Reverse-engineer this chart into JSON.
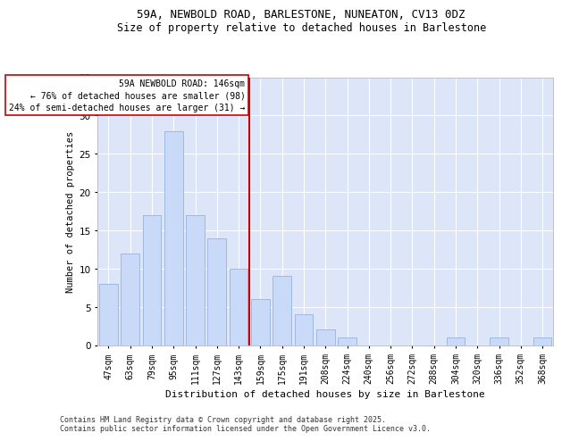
{
  "title1": "59A, NEWBOLD ROAD, BARLESTONE, NUNEATON, CV13 0DZ",
  "title2": "Size of property relative to detached houses in Barlestone",
  "xlabel": "Distribution of detached houses by size in Barlestone",
  "ylabel": "Number of detached properties",
  "categories": [
    "47sqm",
    "63sqm",
    "79sqm",
    "95sqm",
    "111sqm",
    "127sqm",
    "143sqm",
    "159sqm",
    "175sqm",
    "191sqm",
    "208sqm",
    "224sqm",
    "240sqm",
    "256sqm",
    "272sqm",
    "288sqm",
    "304sqm",
    "320sqm",
    "336sqm",
    "352sqm",
    "368sqm"
  ],
  "values": [
    8,
    12,
    17,
    28,
    17,
    14,
    10,
    6,
    9,
    4,
    2,
    1,
    0,
    0,
    0,
    0,
    1,
    0,
    1,
    0,
    1
  ],
  "bar_color": "#c9daf8",
  "bar_edge_color": "#a0b8e0",
  "vline_index": 6.5,
  "vline_color": "#cc0000",
  "annotation_text": "59A NEWBOLD ROAD: 146sqm\n← 76% of detached houses are smaller (98)\n24% of semi-detached houses are larger (31) →",
  "annotation_box_color": "#ffffff",
  "annotation_box_edge": "#cc0000",
  "ylim": [
    0,
    35
  ],
  "yticks": [
    0,
    5,
    10,
    15,
    20,
    25,
    30,
    35
  ],
  "bg_color": "#dce6f8",
  "fig_bg_color": "#ffffff",
  "footer1": "Contains HM Land Registry data © Crown copyright and database right 2025.",
  "footer2": "Contains public sector information licensed under the Open Government Licence v3.0."
}
